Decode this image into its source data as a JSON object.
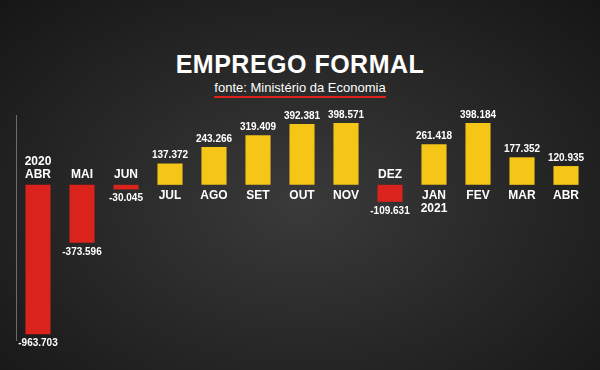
{
  "chart_data": {
    "type": "bar",
    "title": "EMPREGO FORMAL",
    "subtitle": "fonte: Ministério da Economia",
    "categories": [
      "2020 ABR",
      "MAI",
      "JUN",
      "JUL",
      "AGO",
      "SET",
      "OUT",
      "NOV",
      "DEZ",
      "JAN 2021",
      "FEV",
      "MAR",
      "ABR"
    ],
    "values": [
      -963703,
      -373596,
      -30045,
      137372,
      243266,
      319409,
      392381,
      398571,
      -109631,
      261418,
      398184,
      177352,
      120935
    ],
    "value_labels": [
      "-963.703",
      "-373.596",
      "-30.045",
      "137.372",
      "243.266",
      "319.409",
      "392.381",
      "398.571",
      "-109.631",
      "261.418",
      "398.184",
      "177.352",
      "120.935"
    ],
    "colors": [
      "#d9231c",
      "#d9231c",
      "#d9231c",
      "#f5c518",
      "#f5c518",
      "#f5c518",
      "#f5c518",
      "#f5c518",
      "#d9231c",
      "#f5c518",
      "#f5c518",
      "#f5c518",
      "#f5c518"
    ],
    "ylim": [
      -1000000,
      450000
    ],
    "grid": false,
    "data_labels": true,
    "tick_labels": false
  }
}
